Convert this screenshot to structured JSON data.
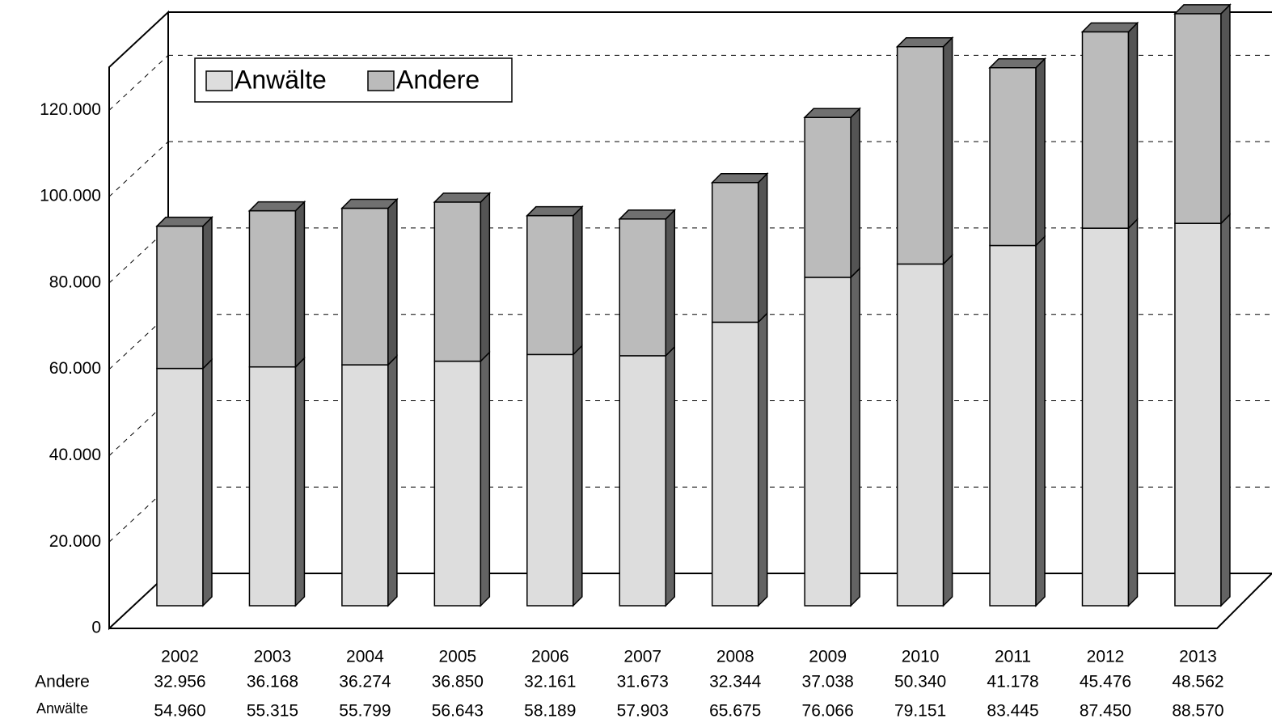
{
  "chart_data": {
    "type": "bar3d_stacked",
    "categories": [
      "2002",
      "2003",
      "2004",
      "2005",
      "2006",
      "2007",
      "2008",
      "2009",
      "2010",
      "2011",
      "2012",
      "2013"
    ],
    "series": [
      {
        "name": "Anwälte",
        "color": "#dddddd",
        "values": [
          54960,
          55315,
          55799,
          56643,
          58189,
          57903,
          65675,
          76066,
          79151,
          83445,
          87450,
          88570
        ],
        "value_labels": [
          "54.960",
          "55.315",
          "55.799",
          "56.643",
          "58.189",
          "57.903",
          "65.675",
          "76.066",
          "79.151",
          "83.445",
          "87.450",
          "88.570"
        ]
      },
      {
        "name": "Andere",
        "color": "#bbbbbb",
        "values": [
          32956,
          36168,
          36274,
          36850,
          32161,
          31673,
          32344,
          37038,
          50340,
          41178,
          45476,
          48562
        ],
        "value_labels": [
          "32.956",
          "36.168",
          "36.274",
          "36.850",
          "32.161",
          "31.673",
          "32.344",
          "37.038",
          "50.340",
          "41.178",
          "45.476",
          "48.562"
        ]
      }
    ],
    "ylim": [
      0,
      130000
    ],
    "yticks": [
      0,
      {
        "value": 20000,
        "label": "20.000"
      },
      {
        "value": 40000,
        "label": "40.000"
      },
      {
        "value": 60000,
        "label": "60.000"
      },
      {
        "value": 80000,
        "label": "80.000"
      },
      {
        "value": 100000,
        "label": "100.000"
      },
      {
        "value": 120000,
        "label": "120.000"
      }
    ],
    "grid": true,
    "legend": "top-left"
  }
}
